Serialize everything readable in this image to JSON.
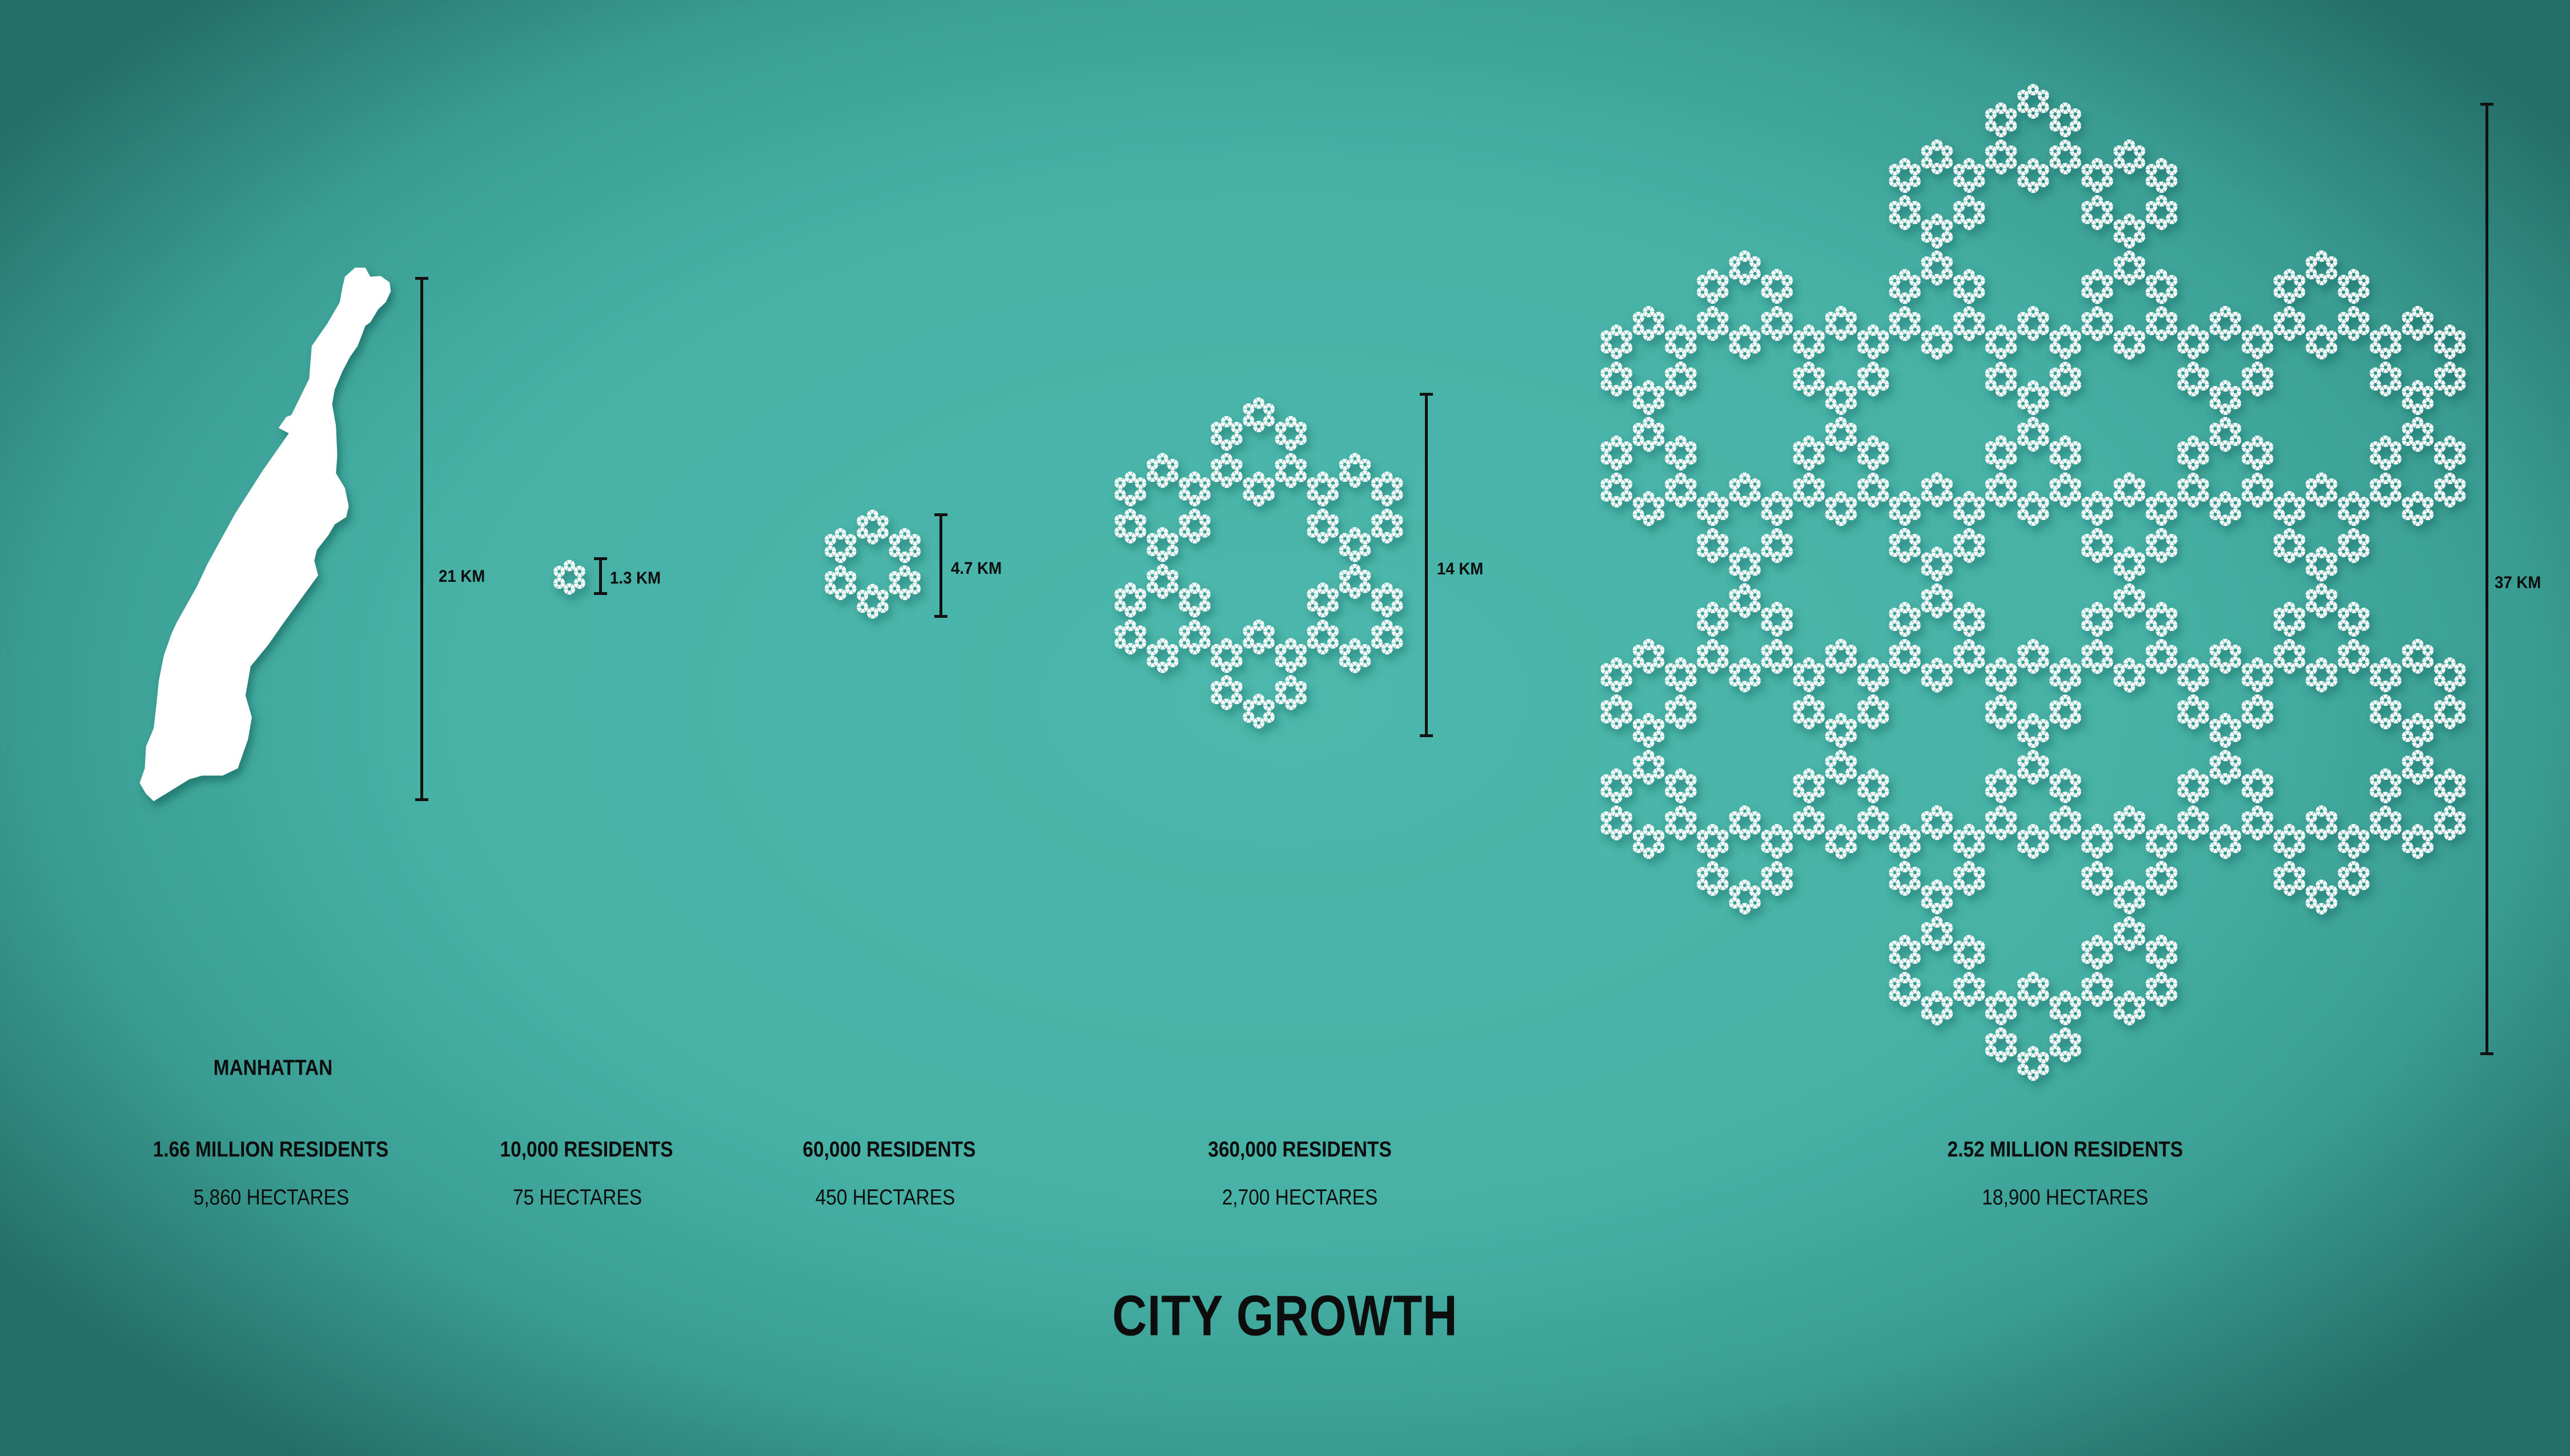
{
  "title": "CITY GROWTH",
  "colors": {
    "background": "#47b1a6",
    "shape": "#ffffff",
    "text": "#0d0d0d"
  },
  "manhattan": {
    "name": "MANHATTAN",
    "residents": "1.66 MILLION RESIDENTS",
    "hectares": "5,860 HECTARES",
    "scale": "21 KM"
  },
  "clusters": [
    {
      "residents": "10,000 RESIDENTS",
      "hectares": "75 HECTARES",
      "scale": "1.3 KM",
      "level": 0
    },
    {
      "residents": "60,000 RESIDENTS",
      "hectares": "450 HECTARES",
      "scale": "4.7 KM",
      "level": 1
    },
    {
      "residents": "360,000 RESIDENTS",
      "hectares": "2,700 HECTARES",
      "scale": "14 KM",
      "level": 2
    },
    {
      "residents": "2.52 MILLION RESIDENTS",
      "hectares": "18,900 HECTARES",
      "scale": "37 KM",
      "level": 3
    }
  ]
}
